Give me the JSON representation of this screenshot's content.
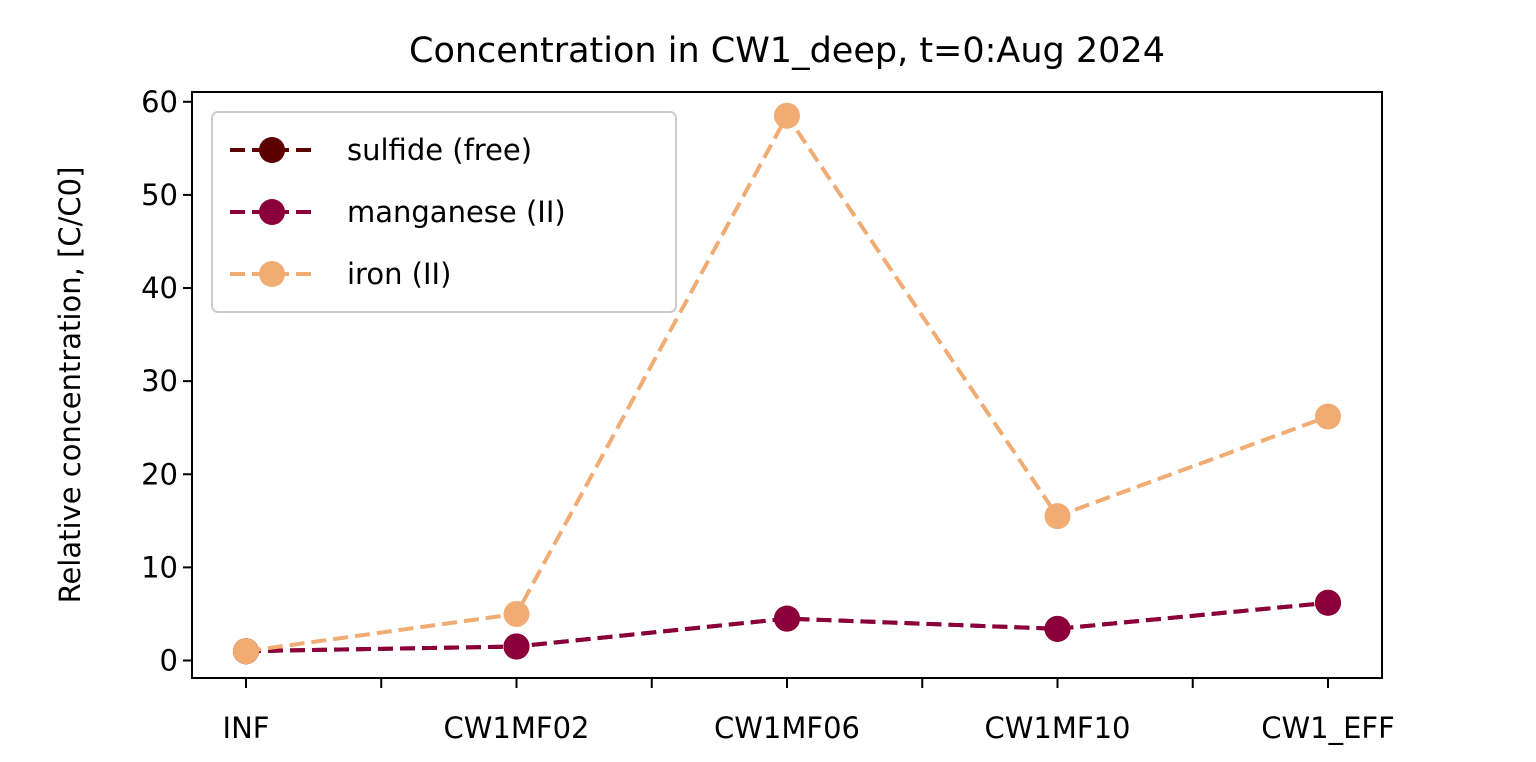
{
  "chart_data": {
    "type": "line",
    "title": "Concentration in CW1_deep, t=0:Aug 2024",
    "xlabel": "",
    "ylabel": "Relative concentration, [C/C0]",
    "categories": [
      "INF",
      "CW1MF02",
      "CW1MF06",
      "CW1MF10",
      "CW1_EFF"
    ],
    "ylim": [
      -2,
      61.5
    ],
    "yticks": [
      0,
      10,
      20,
      30,
      40,
      50,
      60
    ],
    "grid": false,
    "legend_position": "upper-left",
    "series": [
      {
        "name": "sulfide (free)",
        "color": "#5c0000",
        "line_style": "dashed",
        "marker": "circle",
        "values": [
          1.0,
          1.5,
          4.5,
          3.4,
          6.2
        ]
      },
      {
        "name": "manganese (II)",
        "color": "#8b003a",
        "line_style": "dashed",
        "marker": "circle",
        "values": [
          1.0,
          1.5,
          4.5,
          3.4,
          6.2
        ]
      },
      {
        "name": "iron (II)",
        "color": "#f0ac72",
        "line_style": "dashed",
        "marker": "circle",
        "values": [
          1.0,
          5.0,
          58.5,
          15.5,
          26.2
        ]
      }
    ]
  }
}
